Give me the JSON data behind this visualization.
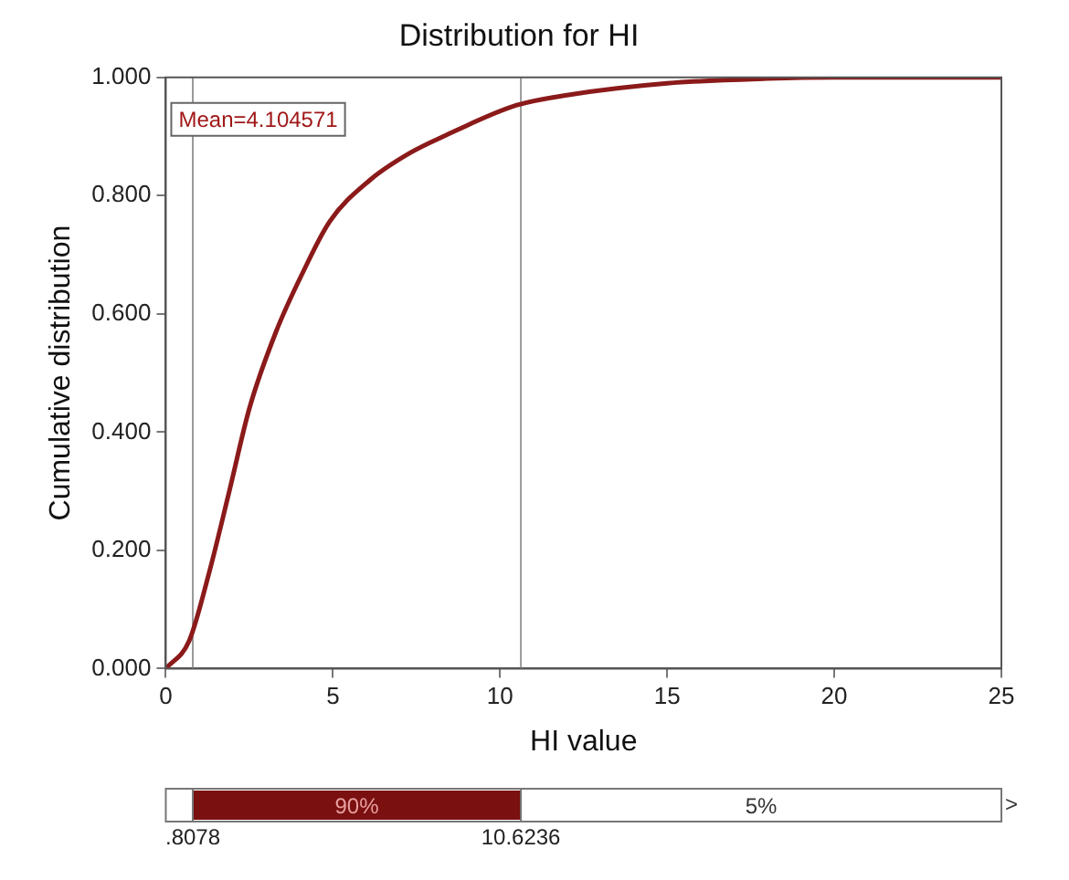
{
  "chart_data": {
    "type": "line",
    "title": "Distribution for HI",
    "xlabel": "HI value",
    "ylabel": "Cumulative distribution",
    "series": [
      {
        "color": "#8b1a1a",
        "x": [
          0,
          0.7,
          1.3,
          1.9,
          2.5,
          3.3,
          4.1,
          4.9,
          6.1,
          7.3,
          8.3,
          10.5,
          12,
          15,
          18,
          20,
          25
        ],
        "values": [
          0,
          0.047,
          0.163,
          0.3,
          0.44,
          0.57,
          0.67,
          0.756,
          0.826,
          0.872,
          0.9,
          0.953,
          0.97,
          0.99,
          0.998,
          1,
          1
        ]
      }
    ],
    "xlim": [
      0,
      25
    ],
    "xticks": [
      0,
      5,
      10,
      15,
      20,
      25
    ],
    "ylim": [
      0,
      1
    ],
    "yticks": [
      {
        "value": 0,
        "label": "0.000"
      },
      {
        "value": 0.2,
        "label": "0.200"
      },
      {
        "value": 0.4,
        "label": "0.400"
      },
      {
        "value": 0.6,
        "label": "0.600"
      },
      {
        "value": 0.8,
        "label": "0.800"
      },
      {
        "value": 1,
        "label": "1.000"
      }
    ],
    "grid": false,
    "legend": false,
    "marker": "none",
    "line_style": "solid",
    "ref_lines": [
      {
        "axis": "x",
        "value": 0.8078,
        "color": "#999999"
      },
      {
        "axis": "x",
        "value": 10.6236,
        "color": "#999999"
      }
    ],
    "annotations": [
      "Mean=4.104571",
      ".8078",
      "10.6236",
      "90%",
      "5%",
      ">"
    ]
  }
}
